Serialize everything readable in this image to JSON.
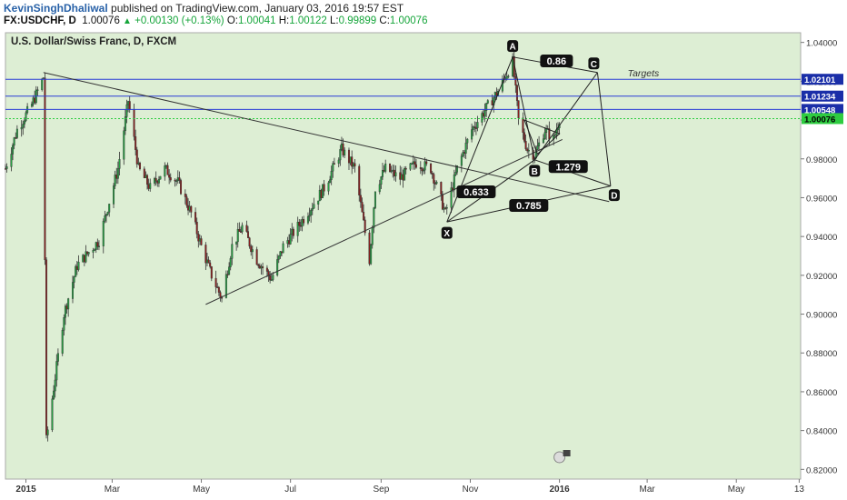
{
  "header": {
    "author": "KevinSinghDhaliwal",
    "published": "published on TradingView.com, January 03, 2016 19:57 EST",
    "symbol": "FX:USDCHF, D",
    "last": "1.00076",
    "change": "+0.00130 (+0.13%)",
    "open_label": "O:",
    "open": "1.00041",
    "high_label": "H:",
    "high": "1.00122",
    "low_label": "L:",
    "low": "0.99899",
    "close_label": "C:",
    "close": "1.00076"
  },
  "chart_data": {
    "type": "candlestick",
    "title": "U.S. Dollar/Swiss Franc, D, FXCM",
    "ylim": [
      0.815,
      1.045
    ],
    "y_ticks": [
      0.82,
      0.84,
      0.86,
      0.88,
      0.9,
      0.92,
      0.94,
      0.96,
      0.98,
      1.0,
      1.02,
      1.04
    ],
    "y_tick_labels": [
      "0.82000",
      "0.84000",
      "0.86000",
      "0.88000",
      "0.90000",
      "0.92000",
      "0.94000",
      "0.96000",
      "0.98000",
      "1.00000",
      "1.02000",
      "1.04000"
    ],
    "x_range": [
      "2014-12-18",
      "2016-06-14"
    ],
    "x_ticks": [
      {
        "date": "2015-01-01",
        "label": "2015",
        "bold": true
      },
      {
        "date": "2015-03-01",
        "label": "Mar"
      },
      {
        "date": "2015-05-01",
        "label": "May"
      },
      {
        "date": "2015-07-01",
        "label": "Jul"
      },
      {
        "date": "2015-09-01",
        "label": "Sep"
      },
      {
        "date": "2015-11-01",
        "label": "Nov"
      },
      {
        "date": "2016-01-01",
        "label": "2016",
        "bold": true
      },
      {
        "date": "2016-03-01",
        "label": "Mar"
      },
      {
        "date": "2016-05-01",
        "label": "May"
      },
      {
        "date": "2016-06-13",
        "label": "13"
      }
    ],
    "price_path": [
      {
        "date": "2014-12-18",
        "price": 0.975
      },
      {
        "date": "2014-12-26",
        "price": 0.995
      },
      {
        "date": "2015-01-05",
        "price": 1.008
      },
      {
        "date": "2015-01-13",
        "price": 1.022
      },
      {
        "date": "2015-01-15",
        "price": 0.835
      },
      {
        "date": "2015-01-20",
        "price": 0.862
      },
      {
        "date": "2015-01-27",
        "price": 0.9
      },
      {
        "date": "2015-02-05",
        "price": 0.925
      },
      {
        "date": "2015-02-20",
        "price": 0.938
      },
      {
        "date": "2015-03-05",
        "price": 0.975
      },
      {
        "date": "2015-03-12",
        "price": 1.01
      },
      {
        "date": "2015-03-19",
        "price": 0.975
      },
      {
        "date": "2015-03-27",
        "price": 0.965
      },
      {
        "date": "2015-04-06",
        "price": 0.975
      },
      {
        "date": "2015-04-15",
        "price": 0.968
      },
      {
        "date": "2015-04-24",
        "price": 0.952
      },
      {
        "date": "2015-05-01",
        "price": 0.935
      },
      {
        "date": "2015-05-08",
        "price": 0.92
      },
      {
        "date": "2015-05-15",
        "price": 0.908
      },
      {
        "date": "2015-05-22",
        "price": 0.935
      },
      {
        "date": "2015-05-29",
        "price": 0.945
      },
      {
        "date": "2015-06-08",
        "price": 0.928
      },
      {
        "date": "2015-06-18",
        "price": 0.918
      },
      {
        "date": "2015-06-26",
        "price": 0.935
      },
      {
        "date": "2015-07-06",
        "price": 0.945
      },
      {
        "date": "2015-07-15",
        "price": 0.955
      },
      {
        "date": "2015-07-24",
        "price": 0.965
      },
      {
        "date": "2015-08-05",
        "price": 0.985
      },
      {
        "date": "2015-08-14",
        "price": 0.975
      },
      {
        "date": "2015-08-24",
        "price": 0.928
      },
      {
        "date": "2015-08-28",
        "price": 0.965
      },
      {
        "date": "2015-09-04",
        "price": 0.975
      },
      {
        "date": "2015-09-14",
        "price": 0.97
      },
      {
        "date": "2015-09-25",
        "price": 0.978
      },
      {
        "date": "2015-10-05",
        "price": 0.975
      },
      {
        "date": "2015-10-15",
        "price": 0.952
      },
      {
        "date": "2015-10-23",
        "price": 0.975
      },
      {
        "date": "2015-11-02",
        "price": 0.995
      },
      {
        "date": "2015-11-11",
        "price": 1.005
      },
      {
        "date": "2015-11-20",
        "price": 1.015
      },
      {
        "date": "2015-11-30",
        "price": 1.03
      },
      {
        "date": "2015-12-04",
        "price": 1.0
      },
      {
        "date": "2015-12-10",
        "price": 0.985
      },
      {
        "date": "2015-12-15",
        "price": 0.982
      },
      {
        "date": "2015-12-22",
        "price": 0.995
      },
      {
        "date": "2015-12-28",
        "price": 0.99
      },
      {
        "date": "2016-01-01",
        "price": 1.0008
      }
    ],
    "horizontal_levels": [
      {
        "price": 1.02101,
        "label": "1.02101",
        "kind": "line"
      },
      {
        "price": 1.01234,
        "label": "1.01234",
        "kind": "line"
      },
      {
        "price": 1.00548,
        "label": "1.00548",
        "kind": "line"
      },
      {
        "price": 1.00076,
        "label": "1.00076",
        "kind": "current"
      }
    ],
    "trendlines": [
      {
        "from": {
          "date": "2015-01-13",
          "price": 1.0245
        },
        "to": {
          "date": "2016-02-04",
          "price": 0.958
        }
      },
      {
        "from": {
          "date": "2015-05-04",
          "price": 0.905
        },
        "to": {
          "date": "2016-01-03",
          "price": 0.99
        }
      }
    ],
    "pattern_points": [
      {
        "label": "X",
        "date": "2015-10-16",
        "price": 0.9475
      },
      {
        "label": "A",
        "date": "2015-11-30",
        "price": 1.0325
      },
      {
        "label": "B",
        "date": "2015-12-15",
        "price": 0.9795
      },
      {
        "label": "C",
        "date": "2016-01-27",
        "price": 1.0245
      },
      {
        "label": "D",
        "date": "2016-02-05",
        "price": 0.966
      }
    ],
    "ratios": [
      {
        "label": "0.86",
        "date": "2015-12-30",
        "price": 1.0305
      },
      {
        "label": "0.633",
        "date": "2015-11-05",
        "price": 0.963
      },
      {
        "label": "0.785",
        "date": "2015-12-11",
        "price": 0.956
      },
      {
        "label": "1.279",
        "date": "2016-01-07",
        "price": 0.976
      }
    ],
    "triangle": [
      {
        "date": "2015-12-08",
        "price": 1.0
      },
      {
        "date": "2016-01-01",
        "price": 0.993
      },
      {
        "date": "2015-12-17",
        "price": 0.9825
      }
    ],
    "annotation": "Targets",
    "annotation_date": "2016-01-29",
    "annotation_price": 1.0245
  }
}
